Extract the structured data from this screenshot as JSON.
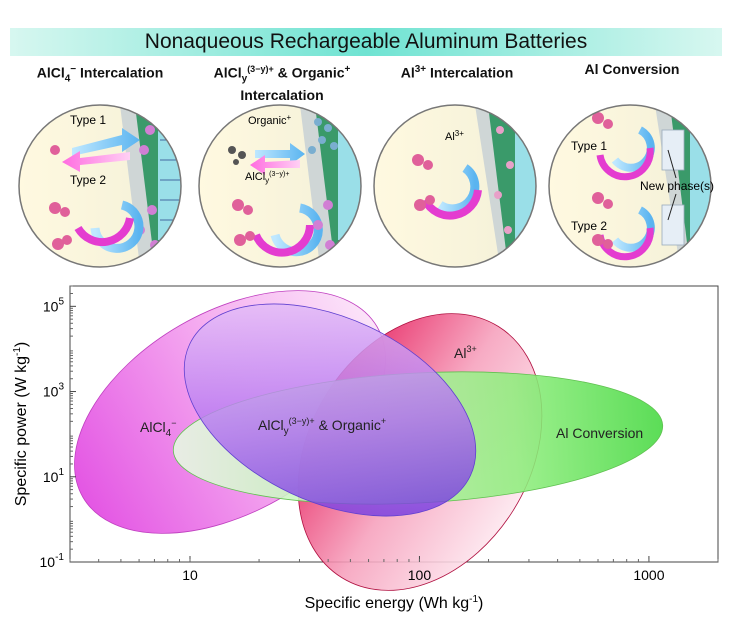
{
  "banner": {
    "title": "Nonaqueous Rechargeable Aluminum Batteries"
  },
  "panels": [
    {
      "title_main": "AlCl",
      "title_sub": "4",
      "title_sup": "−",
      "title_rest": " Intercalation",
      "labels": {
        "type1": "Type 1",
        "type2": "Type 2"
      }
    },
    {
      "title_main": "AlCl",
      "title_sub": "y",
      "title_sup": "(3−y)+",
      "title_rest": " & Organic",
      "title_sup2": "+",
      "title_line2": "Intercalation",
      "labels": {
        "organic_main": "Organic",
        "organic_sup": "+",
        "alcl_main": "AlCl",
        "alcl_sub": "y",
        "alcl_sup": "(3−y)+"
      }
    },
    {
      "title_main": "Al",
      "title_sup": "3+",
      "title_rest": " Intercalation",
      "labels": {
        "al_main": "Al",
        "al_sup": "3+"
      }
    },
    {
      "title_main": "Al Conversion",
      "labels": {
        "type1": "Type 1",
        "type2": "Type 2",
        "new_phase": "New phase(s)"
      }
    }
  ],
  "chart_data": {
    "type": "ellipse-region",
    "xlabel_main": "Specific energy (Wh kg",
    "xlabel_sup": "-1",
    "xlabel_end": ")",
    "ylabel_main": "Specific power (W kg",
    "ylabel_sup": "-1",
    "ylabel_end": ")",
    "x_scale": "log",
    "y_scale": "log",
    "xlim": [
      3,
      2000
    ],
    "ylim": [
      0.1,
      300000
    ],
    "x_ticks": [
      {
        "value": 10,
        "label": "10"
      },
      {
        "value": 100,
        "label": "100"
      },
      {
        "value": 1000,
        "label": "1000"
      }
    ],
    "y_ticks": [
      {
        "value": 0.1,
        "base": "10",
        "exp": "-1"
      },
      {
        "value": 10,
        "base": "10",
        "exp": "1"
      },
      {
        "value": 1000,
        "base": "10",
        "exp": "3"
      },
      {
        "value": 100000,
        "base": "10",
        "exp": "5"
      }
    ],
    "regions": [
      {
        "name": "AlCl4−",
        "label_main": "AlCl",
        "label_sub": "4",
        "label_sup": "−",
        "color": "#e04fe0"
      },
      {
        "name": "Al3+",
        "label_main": "Al",
        "label_sup": "3+",
        "color": "#e0205a"
      },
      {
        "name": "Al Conversion",
        "label_main": "Al Conversion",
        "color": "#5fe05a"
      },
      {
        "name": "AlCly(3−y)+ & Organic+",
        "label_main": "AlCl",
        "label_sub": "y",
        "label_sup": "(3−y)+",
        "label_rest": " & Organic",
        "label_sup2": "+",
        "color": "#6a3ad8"
      }
    ]
  }
}
